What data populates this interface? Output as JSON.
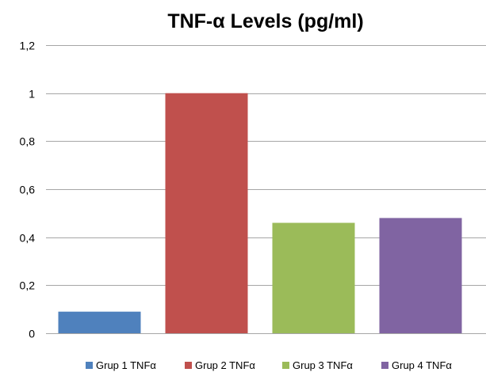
{
  "chart_data": {
    "type": "bar",
    "title": "TNF-α Levels (pg/ml)",
    "xlabel": "",
    "ylabel": "",
    "categories": [
      "Grup 1 TNFα",
      "Grup 2 TNFα",
      "Grup 3 TNFα",
      "Grup 4 TNFα"
    ],
    "values": [
      0.09,
      1.0,
      0.46,
      0.48
    ],
    "colors": [
      "#4f81bd",
      "#c0504d",
      "#9bbb59",
      "#8064a2"
    ],
    "ylim": [
      0,
      1.2
    ],
    "yticks": [
      "0",
      "0,2",
      "0,4",
      "0,6",
      "0,8",
      "1",
      "1,2"
    ],
    "grid": true,
    "legend_position": "bottom"
  }
}
